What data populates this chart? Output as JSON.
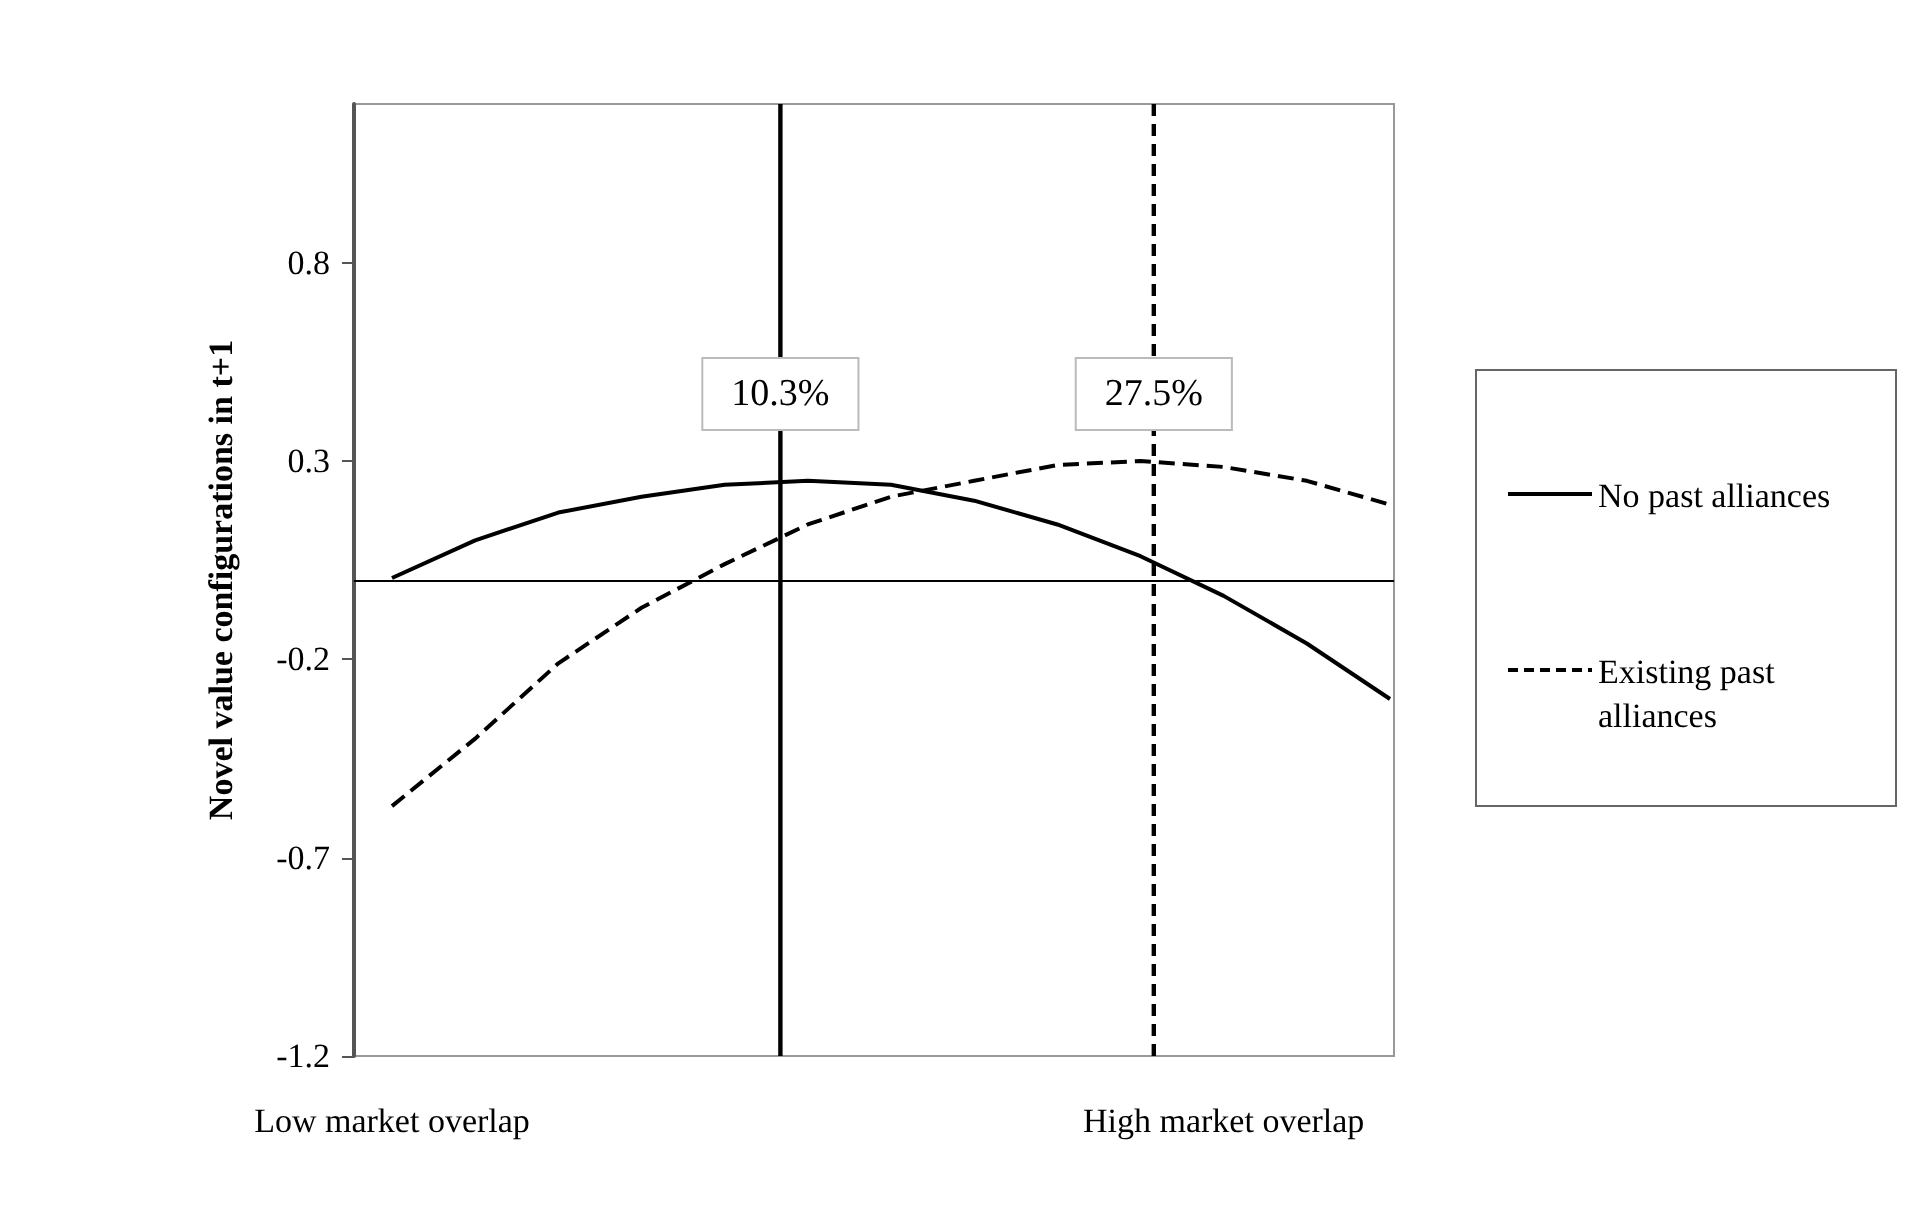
{
  "chart_data": {
    "type": "line",
    "ylabel": "Novel value configurations in t+1",
    "categories": [
      "Low market overlap",
      null,
      null,
      null,
      null,
      null,
      null,
      null,
      null,
      null,
      "High market overlap",
      null,
      null
    ],
    "ylim": [
      -1.2,
      1.2
    ],
    "yticks": [
      -1.2,
      -0.7,
      -0.2,
      0.3,
      0.8
    ],
    "series": [
      {
        "name": "No past alliances",
        "color": "#000000",
        "line_style": "solid",
        "values": [
          0.005,
          0.1,
          0.17,
          0.21,
          0.24,
          0.25,
          0.24,
          0.2,
          0.14,
          0.06,
          -0.04,
          -0.16,
          -0.3
        ]
      },
      {
        "name": "Existing past alliances",
        "color": "#000000",
        "line_style": "dashed",
        "values": [
          -0.57,
          -0.4,
          -0.21,
          -0.07,
          0.04,
          0.14,
          0.21,
          0.25,
          0.29,
          0.3,
          0.285,
          0.25,
          0.19
        ]
      }
    ],
    "ref_lines": [
      {
        "axis": "y",
        "value": 0,
        "line_style": "solid",
        "color": "#000000"
      }
    ],
    "annotations": [
      "10.3%",
      "27.5%"
    ],
    "grid": false,
    "legend": "right",
    "marker": "none"
  }
}
